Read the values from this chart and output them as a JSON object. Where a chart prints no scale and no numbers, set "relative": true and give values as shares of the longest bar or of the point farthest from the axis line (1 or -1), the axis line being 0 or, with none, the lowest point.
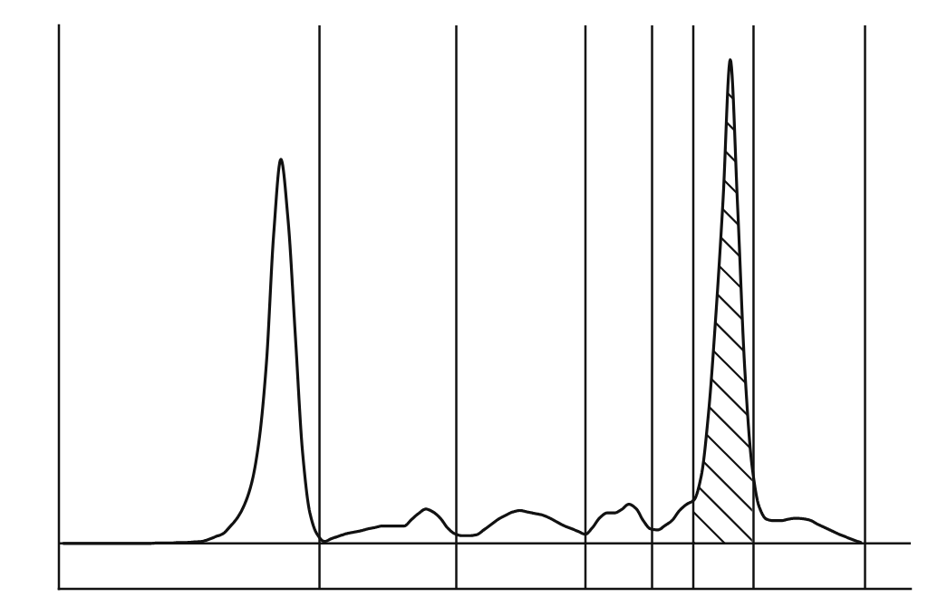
{
  "chart_data": {
    "type": "line",
    "relative": true,
    "tick_labels": false,
    "categories": [
      null,
      null,
      null,
      null,
      null,
      null,
      null,
      null,
      null,
      null,
      null,
      null,
      null,
      null,
      null,
      null,
      null,
      null,
      null,
      null,
      null,
      null,
      null,
      null,
      null,
      null,
      null,
      null,
      null,
      null,
      null,
      null,
      null,
      null,
      null,
      null,
      null,
      null,
      null,
      null,
      null,
      null,
      null,
      null,
      null,
      null,
      null,
      null,
      null,
      null,
      null,
      null,
      null,
      null,
      null,
      null,
      null,
      null,
      null,
      null,
      null,
      null,
      null,
      null,
      null,
      null,
      null,
      null,
      null,
      null,
      null,
      null,
      null,
      null,
      null,
      null,
      null,
      null,
      null,
      null,
      null,
      null,
      null,
      null,
      null,
      null,
      null,
      null,
      null,
      null,
      null,
      null,
      null,
      null,
      null,
      null,
      null,
      null,
      null,
      null,
      null,
      null,
      null,
      null,
      null,
      null,
      null,
      null,
      null,
      null,
      null
    ],
    "series": [
      {
        "color": "#111111",
        "values": [
          0,
          0,
          0,
          0,
          0,
          0,
          0,
          0,
          0,
          0,
          0,
          0,
          0,
          0.001,
          0.001,
          0.001,
          0.002,
          0.002,
          0.003,
          0.004,
          0.008,
          0.014,
          0.02,
          0.035,
          0.053,
          0.081,
          0.127,
          0.214,
          0.372,
          0.638,
          0.794,
          0.667,
          0.428,
          0.187,
          0.063,
          0.019,
          0.004,
          0.01,
          0.015,
          0.02,
          0.023,
          0.026,
          0.03,
          0.033,
          0.036,
          0.036,
          0.036,
          0.036,
          0.049,
          0.062,
          0.071,
          0.065,
          0.052,
          0.032,
          0.02,
          0.016,
          0.016,
          0.018,
          0.028,
          0.039,
          0.05,
          0.058,
          0.065,
          0.068,
          0.065,
          0.062,
          0.059,
          0.053,
          0.045,
          0.037,
          0.031,
          0.025,
          0.019,
          0.033,
          0.053,
          0.063,
          0.063,
          0.07,
          0.081,
          0.072,
          0.047,
          0.03,
          0.028,
          0.037,
          0.048,
          0.068,
          0.081,
          0.09,
          0.14,
          0.27,
          0.47,
          0.71,
          1,
          0.7,
          0.36,
          0.16,
          0.075,
          0.05,
          0.047,
          0.047,
          0.05,
          0.052,
          0.051,
          0.048,
          0.04,
          0.033,
          0.026,
          0.019,
          0.013,
          0.007,
          0.002
        ]
      },
      {
        "type": "area",
        "color": "#111111",
        "values": [
          null,
          null,
          null,
          null,
          null,
          null,
          null,
          null,
          null,
          null,
          null,
          null,
          null,
          null,
          null,
          null,
          null,
          null,
          null,
          null,
          null,
          null,
          null,
          null,
          null,
          null,
          null,
          null,
          null,
          null,
          null,
          null,
          null,
          null,
          null,
          null,
          null,
          null,
          null,
          null,
          null,
          null,
          null,
          null,
          null,
          null,
          null,
          null,
          null,
          null,
          null,
          null,
          null,
          null,
          null,
          null,
          null,
          null,
          null,
          null,
          null,
          null,
          null,
          null,
          null,
          null,
          null,
          null,
          null,
          null,
          null,
          null,
          null,
          null,
          null,
          null,
          null,
          null,
          null,
          null,
          null,
          null,
          null,
          null,
          null,
          null,
          null,
          0.09,
          0.14,
          0.27,
          0.47,
          0.71,
          1,
          0.7,
          0.36,
          0.16,
          null,
          null,
          null,
          null,
          null,
          null,
          null,
          null,
          null,
          null,
          null,
          null,
          null,
          null,
          null
        ]
      }
    ]
  }
}
